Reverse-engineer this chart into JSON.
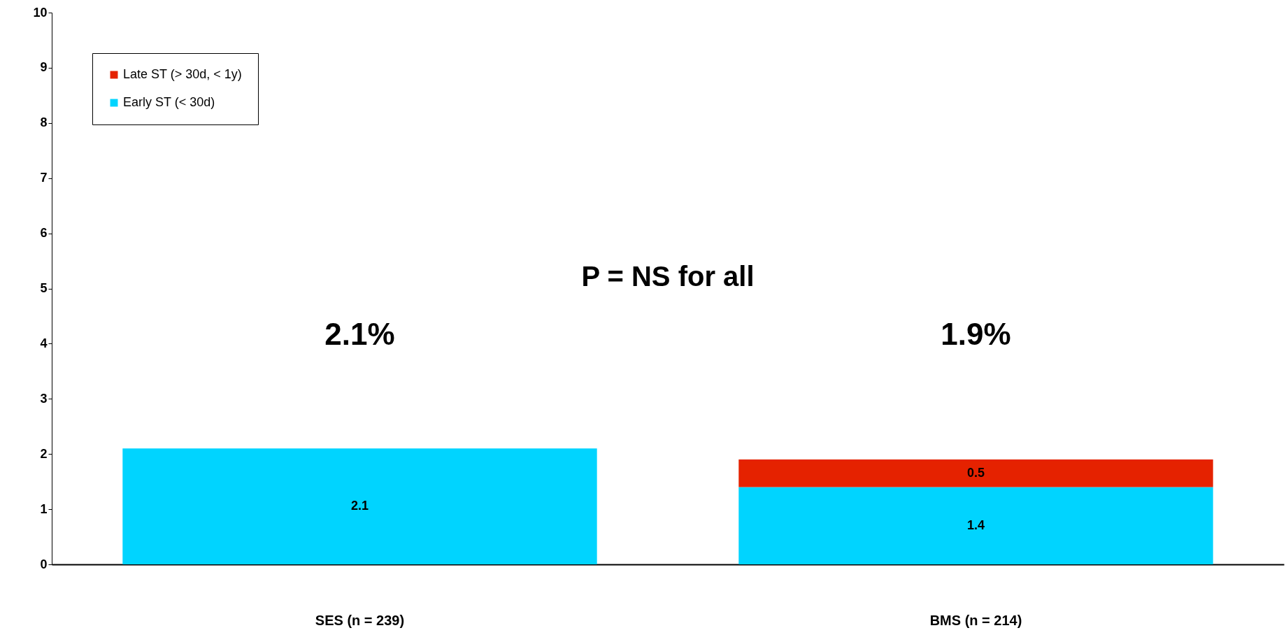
{
  "chart_data": {
    "type": "bar",
    "stacked": true,
    "categories": [
      "SES (n = 239)",
      "BMS (n = 214)"
    ],
    "series": [
      {
        "name": "Early ST (< 30d)",
        "color": "#00d4ff",
        "values": [
          2.1,
          1.4
        ]
      },
      {
        "name": "Late ST (> 30d, < 1y)",
        "color": "#e52200",
        "values": [
          null,
          0.5
        ]
      }
    ],
    "ylim": [
      0,
      10
    ],
    "yticks": [
      0,
      1,
      2,
      3,
      4,
      5,
      6,
      7,
      8,
      9,
      10
    ],
    "grid": false,
    "legend": "top left",
    "data_labels": true,
    "annotations": [
      "P = NS for all",
      "2.1%",
      "1.9%"
    ]
  }
}
